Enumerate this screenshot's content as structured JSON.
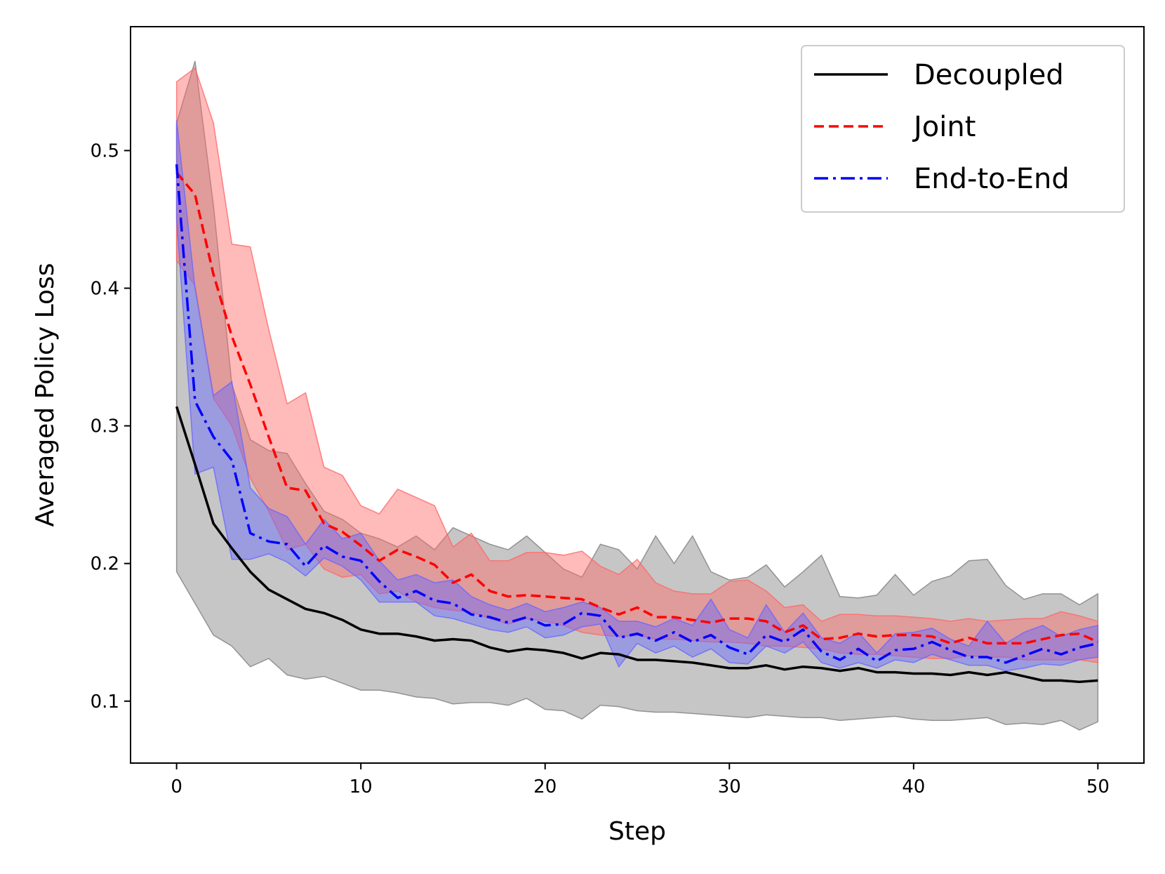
{
  "chart_data": {
    "type": "line",
    "xlabel": "Step",
    "ylabel": "Averaged Policy Loss",
    "xlim": [
      -2.5,
      52.5
    ],
    "ylim": [
      0.055,
      0.59
    ],
    "xticks": [
      0,
      10,
      20,
      30,
      40,
      50
    ],
    "yticks": [
      0.1,
      0.2,
      0.3,
      0.4,
      0.5
    ],
    "xtick_labels": [
      "0",
      "10",
      "20",
      "30",
      "40",
      "50"
    ],
    "ytick_labels": [
      "0.1",
      "0.2",
      "0.3",
      "0.4",
      "0.5"
    ],
    "grid": false,
    "legend_position": "upper-right",
    "x": [
      0,
      1,
      2,
      3,
      4,
      5,
      6,
      7,
      8,
      9,
      10,
      11,
      12,
      13,
      14,
      15,
      16,
      17,
      18,
      19,
      20,
      21,
      22,
      23,
      24,
      25,
      26,
      27,
      28,
      29,
      30,
      31,
      32,
      33,
      34,
      35,
      36,
      37,
      38,
      39,
      40,
      41,
      42,
      43,
      44,
      45,
      46,
      47,
      48,
      49,
      50
    ],
    "series": [
      {
        "name": "Decoupled",
        "color": "#000000",
        "linestyle": "solid",
        "fill_color": "#808080",
        "values": [
          0.314,
          0.272,
          0.229,
          0.211,
          0.194,
          0.181,
          0.174,
          0.167,
          0.164,
          0.159,
          0.152,
          0.149,
          0.149,
          0.147,
          0.144,
          0.145,
          0.144,
          0.139,
          0.136,
          0.138,
          0.137,
          0.135,
          0.131,
          0.135,
          0.134,
          0.13,
          0.13,
          0.129,
          0.128,
          0.126,
          0.124,
          0.124,
          0.126,
          0.123,
          0.125,
          0.124,
          0.122,
          0.124,
          0.121,
          0.121,
          0.12,
          0.12,
          0.119,
          0.121,
          0.119,
          0.121,
          0.118,
          0.115,
          0.115,
          0.114,
          0.115
        ],
        "lower": [
          0.194,
          0.171,
          0.148,
          0.14,
          0.125,
          0.131,
          0.119,
          0.116,
          0.118,
          0.113,
          0.108,
          0.108,
          0.106,
          0.103,
          0.102,
          0.098,
          0.099,
          0.099,
          0.097,
          0.102,
          0.094,
          0.093,
          0.087,
          0.097,
          0.096,
          0.093,
          0.092,
          0.092,
          0.091,
          0.09,
          0.089,
          0.088,
          0.09,
          0.089,
          0.088,
          0.088,
          0.086,
          0.087,
          0.088,
          0.089,
          0.087,
          0.086,
          0.086,
          0.087,
          0.088,
          0.083,
          0.084,
          0.083,
          0.086,
          0.079,
          0.085
        ],
        "upper": [
          0.52,
          0.565,
          0.46,
          0.33,
          0.29,
          0.282,
          0.28,
          0.258,
          0.238,
          0.232,
          0.222,
          0.218,
          0.212,
          0.22,
          0.21,
          0.226,
          0.22,
          0.214,
          0.21,
          0.22,
          0.208,
          0.196,
          0.19,
          0.214,
          0.21,
          0.196,
          0.22,
          0.2,
          0.22,
          0.194,
          0.188,
          0.19,
          0.199,
          0.183,
          0.194,
          0.206,
          0.176,
          0.175,
          0.177,
          0.192,
          0.177,
          0.187,
          0.191,
          0.202,
          0.203,
          0.184,
          0.174,
          0.178,
          0.178,
          0.17,
          0.178
        ]
      },
      {
        "name": "Joint",
        "color": "#ff0000",
        "linestyle": "dashed",
        "fill_color": "#ff6666",
        "values": [
          0.484,
          0.468,
          0.41,
          0.365,
          0.33,
          0.292,
          0.255,
          0.253,
          0.229,
          0.223,
          0.213,
          0.202,
          0.21,
          0.205,
          0.199,
          0.186,
          0.192,
          0.18,
          0.176,
          0.177,
          0.176,
          0.175,
          0.174,
          0.168,
          0.163,
          0.168,
          0.161,
          0.161,
          0.159,
          0.157,
          0.16,
          0.16,
          0.158,
          0.15,
          0.155,
          0.145,
          0.146,
          0.149,
          0.147,
          0.148,
          0.148,
          0.147,
          0.142,
          0.146,
          0.142,
          0.142,
          0.142,
          0.145,
          0.148,
          0.149,
          0.143
        ],
        "lower": [
          0.42,
          0.402,
          0.32,
          0.3,
          0.262,
          0.238,
          0.21,
          0.214,
          0.196,
          0.19,
          0.192,
          0.178,
          0.18,
          0.172,
          0.168,
          0.166,
          0.165,
          0.16,
          0.156,
          0.16,
          0.158,
          0.155,
          0.15,
          0.148,
          0.147,
          0.148,
          0.145,
          0.145,
          0.144,
          0.143,
          0.143,
          0.142,
          0.14,
          0.14,
          0.139,
          0.138,
          0.135,
          0.134,
          0.134,
          0.133,
          0.132,
          0.131,
          0.131,
          0.133,
          0.132,
          0.132,
          0.13,
          0.13,
          0.13,
          0.13,
          0.128
        ],
        "upper": [
          0.55,
          0.56,
          0.52,
          0.432,
          0.43,
          0.37,
          0.316,
          0.324,
          0.27,
          0.264,
          0.242,
          0.236,
          0.254,
          0.248,
          0.242,
          0.212,
          0.222,
          0.202,
          0.202,
          0.208,
          0.208,
          0.206,
          0.209,
          0.198,
          0.192,
          0.203,
          0.186,
          0.18,
          0.178,
          0.178,
          0.187,
          0.188,
          0.18,
          0.168,
          0.17,
          0.158,
          0.163,
          0.163,
          0.162,
          0.162,
          0.161,
          0.16,
          0.158,
          0.16,
          0.158,
          0.159,
          0.16,
          0.16,
          0.165,
          0.162,
          0.158
        ]
      },
      {
        "name": "End-to-End",
        "color": "#0000ff",
        "linestyle": "dashdot",
        "fill_color": "#6666ff",
        "values": [
          0.49,
          0.318,
          0.292,
          0.275,
          0.222,
          0.216,
          0.214,
          0.198,
          0.213,
          0.205,
          0.202,
          0.187,
          0.175,
          0.18,
          0.173,
          0.171,
          0.163,
          0.161,
          0.157,
          0.161,
          0.155,
          0.156,
          0.164,
          0.162,
          0.146,
          0.149,
          0.144,
          0.15,
          0.143,
          0.148,
          0.139,
          0.134,
          0.148,
          0.143,
          0.152,
          0.136,
          0.13,
          0.138,
          0.129,
          0.137,
          0.138,
          0.143,
          0.137,
          0.132,
          0.132,
          0.128,
          0.133,
          0.138,
          0.134,
          0.139,
          0.142
        ],
        "lower": [
          0.45,
          0.265,
          0.27,
          0.203,
          0.203,
          0.207,
          0.201,
          0.191,
          0.204,
          0.198,
          0.188,
          0.172,
          0.172,
          0.172,
          0.162,
          0.16,
          0.156,
          0.152,
          0.15,
          0.154,
          0.146,
          0.148,
          0.154,
          0.156,
          0.125,
          0.142,
          0.135,
          0.14,
          0.132,
          0.138,
          0.128,
          0.127,
          0.14,
          0.135,
          0.143,
          0.128,
          0.124,
          0.128,
          0.124,
          0.13,
          0.128,
          0.134,
          0.13,
          0.126,
          0.126,
          0.122,
          0.124,
          0.127,
          0.126,
          0.13,
          0.132
        ],
        "upper": [
          0.522,
          0.4,
          0.322,
          0.332,
          0.255,
          0.24,
          0.234,
          0.214,
          0.232,
          0.218,
          0.222,
          0.202,
          0.188,
          0.192,
          0.186,
          0.188,
          0.176,
          0.17,
          0.166,
          0.171,
          0.165,
          0.168,
          0.172,
          0.168,
          0.158,
          0.158,
          0.154,
          0.16,
          0.155,
          0.174,
          0.152,
          0.146,
          0.17,
          0.15,
          0.164,
          0.146,
          0.142,
          0.15,
          0.135,
          0.149,
          0.15,
          0.153,
          0.145,
          0.14,
          0.158,
          0.142,
          0.15,
          0.155,
          0.147,
          0.152,
          0.155
        ]
      }
    ]
  }
}
